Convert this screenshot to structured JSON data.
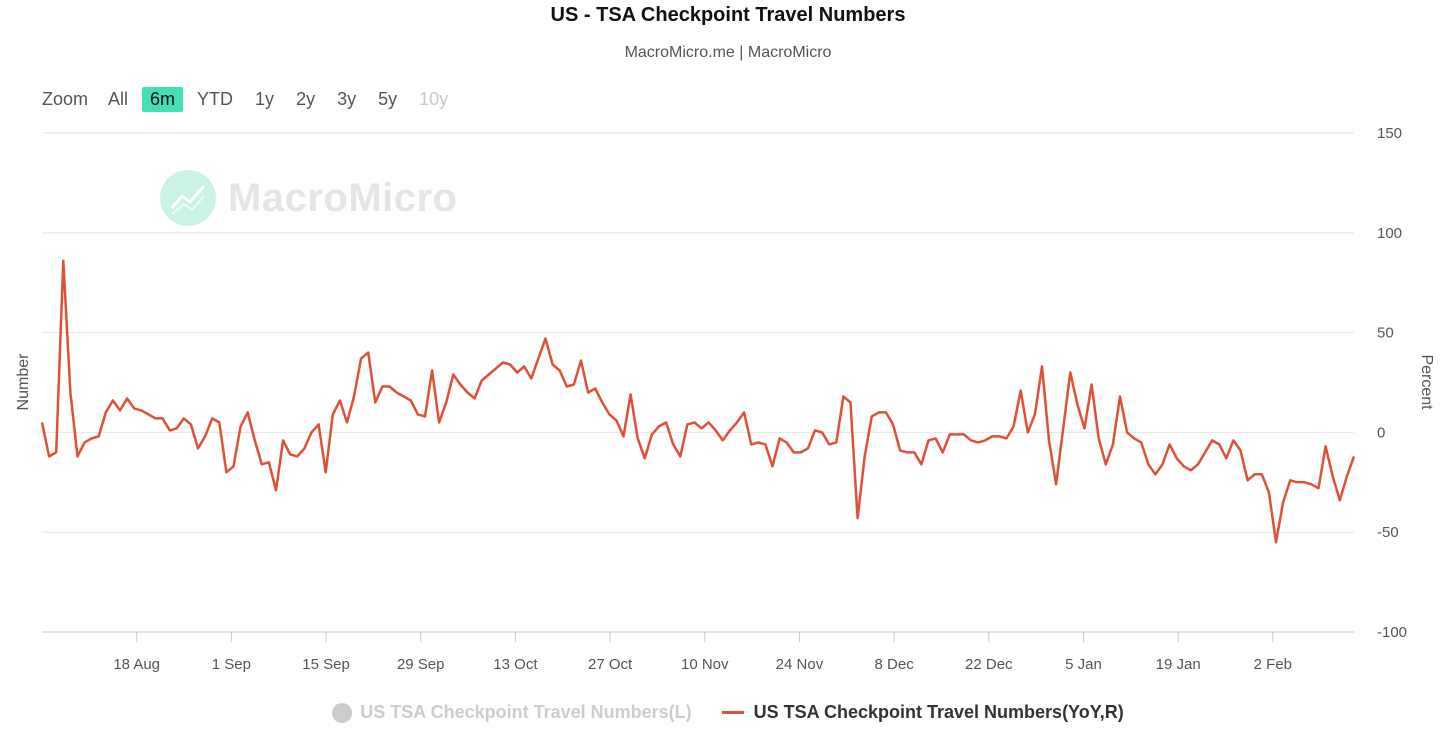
{
  "title": "US - TSA Checkpoint Travel Numbers",
  "subtitle": "MacroMicro.me | MacroMicro",
  "watermark": "MacroMicro",
  "zoom": {
    "label": "Zoom",
    "buttons": [
      {
        "label": "All",
        "state": "normal"
      },
      {
        "label": "6m",
        "state": "active"
      },
      {
        "label": "YTD",
        "state": "normal"
      },
      {
        "label": "1y",
        "state": "normal"
      },
      {
        "label": "2y",
        "state": "normal"
      },
      {
        "label": "3y",
        "state": "normal"
      },
      {
        "label": "5y",
        "state": "normal"
      },
      {
        "label": "10y",
        "state": "disabled"
      }
    ]
  },
  "legend": {
    "items": [
      {
        "label": "US TSA Checkpoint Travel Numbers(L)",
        "visible": false
      },
      {
        "label": "US TSA Checkpoint Travel Numbers(YoY,R)",
        "visible": true
      }
    ]
  },
  "colors": {
    "series": "#e05038",
    "grid": "#e6e6e6",
    "accent": "#44dfb4"
  },
  "chart_data": {
    "type": "line",
    "title": "US - TSA Checkpoint Travel Numbers",
    "ylabel_left": "Number",
    "ylabel_right": "Percent",
    "ylim": [
      -100,
      150
    ],
    "yticks": [
      150,
      100,
      50,
      0,
      -50,
      -100
    ],
    "x_start_day": 0,
    "x_end_day": 194,
    "x_ticks": [
      {
        "day": 14,
        "label": "18 Aug"
      },
      {
        "day": 28,
        "label": "1 Sep"
      },
      {
        "day": 42,
        "label": "15 Sep"
      },
      {
        "day": 56,
        "label": "29 Sep"
      },
      {
        "day": 70,
        "label": "13 Oct"
      },
      {
        "day": 84,
        "label": "27 Oct"
      },
      {
        "day": 98,
        "label": "10 Nov"
      },
      {
        "day": 112,
        "label": "24 Nov"
      },
      {
        "day": 126,
        "label": "8 Dec"
      },
      {
        "day": 140,
        "label": "22 Dec"
      },
      {
        "day": 154,
        "label": "5 Jan"
      },
      {
        "day": 168,
        "label": "19 Jan"
      },
      {
        "day": 182,
        "label": "2 Feb"
      }
    ],
    "series": [
      {
        "name": "US TSA Checkpoint Travel Numbers(YoY,R)",
        "values": [
          5,
          -12,
          -10,
          86,
          20,
          -12,
          -5,
          -3,
          -2,
          10,
          16,
          11,
          17,
          12,
          11,
          9,
          7,
          7,
          1,
          2,
          7,
          4,
          -8,
          -2,
          7,
          5,
          -20,
          -17,
          3,
          10,
          -4,
          -16,
          -15,
          -29,
          -4,
          -11,
          -12,
          -8,
          0,
          4,
          -20,
          9,
          16,
          5,
          18,
          37,
          40,
          15,
          23,
          23,
          20,
          18,
          16,
          9,
          8,
          31,
          5,
          15,
          29,
          24,
          20,
          17,
          26,
          29,
          32,
          35,
          34,
          30,
          33,
          27,
          37,
          47,
          34,
          31,
          23,
          24,
          36,
          20,
          22,
          15,
          9,
          6,
          -2,
          19,
          -3,
          -13,
          -1,
          3,
          5,
          -6,
          -12,
          4,
          5,
          2,
          5,
          1,
          -4,
          1,
          5,
          10,
          -6,
          -5,
          -6,
          -17,
          -3,
          -5,
          -10,
          -10,
          -8,
          1,
          0,
          -6,
          -5,
          18,
          15,
          -43,
          -12,
          8,
          10,
          10,
          4,
          -9,
          -10,
          -10,
          -16,
          -4,
          -3,
          -10,
          -1,
          -1,
          -1,
          -4,
          -5,
          -4,
          -2,
          -2,
          -3,
          3,
          21,
          0,
          9,
          33,
          -4,
          -26,
          2,
          30,
          14,
          2,
          24,
          -3,
          -16,
          -6,
          18,
          0,
          -3,
          -5,
          -16,
          -21,
          -16,
          -6,
          -13,
          -17,
          -19,
          -16,
          -10,
          -4,
          -6,
          -13,
          -4,
          -9,
          -24,
          -21,
          -21,
          -30,
          -55,
          -35,
          -24,
          -25,
          -25,
          -26,
          -28,
          -7,
          -22,
          -34,
          -22,
          -12
        ]
      }
    ]
  }
}
